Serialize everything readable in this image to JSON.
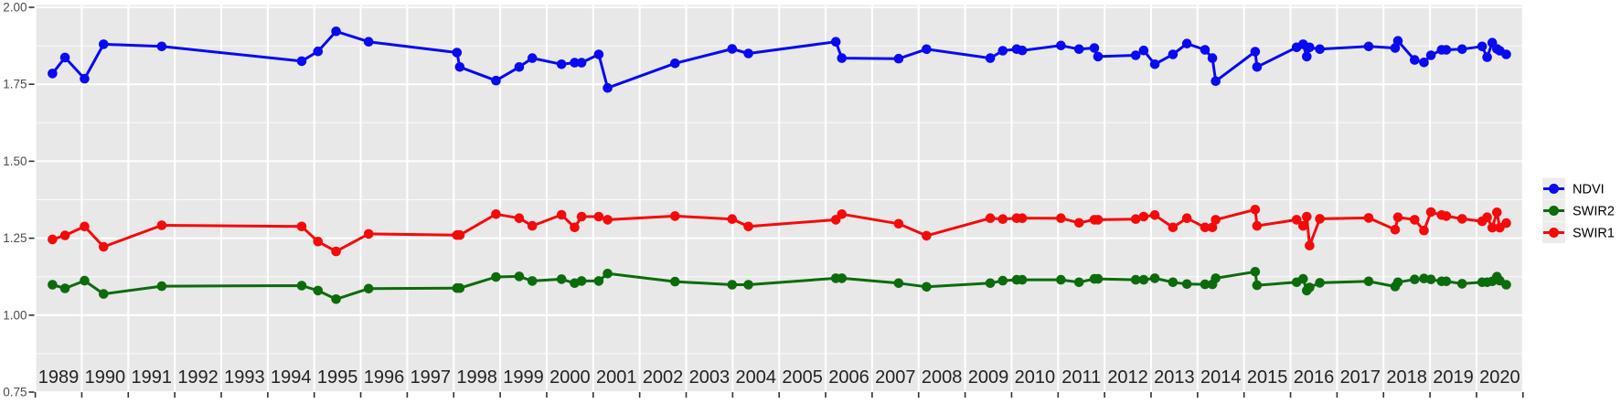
{
  "chart_data": {
    "type": "line",
    "title": "",
    "xlabel": "",
    "ylabel": "",
    "x": [
      1988.87,
      1989.14,
      1989.56,
      1989.97,
      1991.22,
      1994.23,
      1994.58,
      1994.97,
      1995.67,
      1997.57,
      1997.63,
      1998.41,
      1998.91,
      1999.19,
      1999.82,
      2000.1,
      2000.25,
      2000.62,
      2000.81,
      2002.26,
      2003.49,
      2003.84,
      2005.72,
      2005.85,
      2007.07,
      2007.67,
      2009.04,
      2009.31,
      2009.61,
      2009.73,
      2010.56,
      2010.95,
      2011.28,
      2011.36,
      2012.17,
      2012.34,
      2012.58,
      2012.97,
      2013.27,
      2013.66,
      2013.82,
      2013.89,
      2014.74,
      2014.78,
      2015.63,
      2015.77,
      2015.85,
      2015.91,
      2016.13,
      2017.18,
      2017.75,
      2017.81,
      2018.17,
      2018.37,
      2018.52,
      2018.75,
      2018.85,
      2019.19,
      2019.62,
      2019.73,
      2019.84,
      2019.94,
      2020.0,
      2020.14
    ],
    "series": [
      {
        "name": "NDVI",
        "color": "#0909f2",
        "values": [
          1.785,
          1.837,
          1.768,
          1.88,
          1.873,
          1.825,
          1.857,
          1.922,
          1.888,
          1.853,
          1.806,
          1.762,
          1.806,
          1.835,
          1.815,
          1.82,
          1.82,
          1.847,
          1.738,
          1.818,
          1.865,
          1.85,
          1.888,
          1.835,
          1.833,
          1.864,
          1.835,
          1.859,
          1.864,
          1.86,
          1.876,
          1.864,
          1.868,
          1.84,
          1.844,
          1.86,
          1.815,
          1.847,
          1.882,
          1.862,
          1.835,
          1.76,
          1.856,
          1.806,
          1.87,
          1.88,
          1.84,
          1.87,
          1.864,
          1.873,
          1.868,
          1.891,
          1.829,
          1.821,
          1.844,
          1.862,
          1.862,
          1.864,
          1.873,
          1.838,
          1.885,
          1.865,
          1.859,
          1.847
        ]
      },
      {
        "name": "SWIR2",
        "color": "#0c6b0c",
        "values": [
          1.099,
          1.087,
          1.112,
          1.069,
          1.094,
          1.096,
          1.08,
          1.052,
          1.086,
          1.088,
          1.088,
          1.124,
          1.126,
          1.111,
          1.117,
          1.104,
          1.111,
          1.111,
          1.135,
          1.109,
          1.099,
          1.099,
          1.12,
          1.12,
          1.104,
          1.092,
          1.104,
          1.112,
          1.115,
          1.115,
          1.115,
          1.107,
          1.118,
          1.118,
          1.115,
          1.115,
          1.12,
          1.107,
          1.101,
          1.1,
          1.1,
          1.12,
          1.141,
          1.097,
          1.107,
          1.118,
          1.08,
          1.09,
          1.105,
          1.11,
          1.093,
          1.107,
          1.116,
          1.119,
          1.116,
          1.11,
          1.11,
          1.102,
          1.107,
          1.107,
          1.11,
          1.125,
          1.112,
          1.099
        ]
      },
      {
        "name": "SWIR1",
        "color": "#f50a0a",
        "values": [
          1.246,
          1.259,
          1.288,
          1.222,
          1.292,
          1.288,
          1.239,
          1.207,
          1.264,
          1.26,
          1.26,
          1.328,
          1.315,
          1.29,
          1.326,
          1.285,
          1.32,
          1.32,
          1.31,
          1.322,
          1.312,
          1.288,
          1.31,
          1.328,
          1.297,
          1.258,
          1.315,
          1.312,
          1.315,
          1.315,
          1.315,
          1.3,
          1.31,
          1.31,
          1.312,
          1.32,
          1.325,
          1.285,
          1.315,
          1.285,
          1.285,
          1.31,
          1.343,
          1.29,
          1.31,
          1.29,
          1.32,
          1.226,
          1.313,
          1.316,
          1.278,
          1.318,
          1.31,
          1.275,
          1.335,
          1.325,
          1.322,
          1.313,
          1.305,
          1.318,
          1.284,
          1.334,
          1.284,
          1.299
        ]
      }
    ],
    "legend": [
      "NDVI",
      "SWIR2",
      "SWIR1"
    ],
    "legend_position": "right",
    "xlim": [
      1988.5,
      2020.5
    ],
    "ylim": [
      0.75,
      2.005
    ],
    "x_tick_labels": [
      "1989",
      "1990",
      "1991",
      "1992",
      "1993",
      "1994",
      "1995",
      "1996",
      "1997",
      "1998",
      "1999",
      "2000",
      "2001",
      "2002",
      "2003",
      "2004",
      "2005",
      "2006",
      "2007",
      "2008",
      "2009",
      "2010",
      "2011",
      "2012",
      "2013",
      "2014",
      "2015",
      "2016",
      "2017",
      "2018",
      "2019",
      "2020"
    ],
    "y_tick_labels": [
      "2.00",
      "1.75",
      "1.50",
      "1.25",
      "1.00",
      "0.75"
    ],
    "y_tick_values": [
      2.0,
      1.75,
      1.5,
      1.25,
      1.0,
      0.75
    ],
    "y_minor_values": [
      1.875,
      1.625,
      1.375,
      1.125,
      0.875
    ],
    "grid": "white major+minor horizontal, white vertical at year boundaries",
    "style": {
      "panel_bg": "#e8e8e8",
      "grid_color": "#ffffff",
      "tick_color": "#333333",
      "y_label_color": "#4d4d4d",
      "x_label_color": "#222222",
      "legend_key_bg": "#ececec",
      "legend_text_color": "#000000"
    }
  }
}
